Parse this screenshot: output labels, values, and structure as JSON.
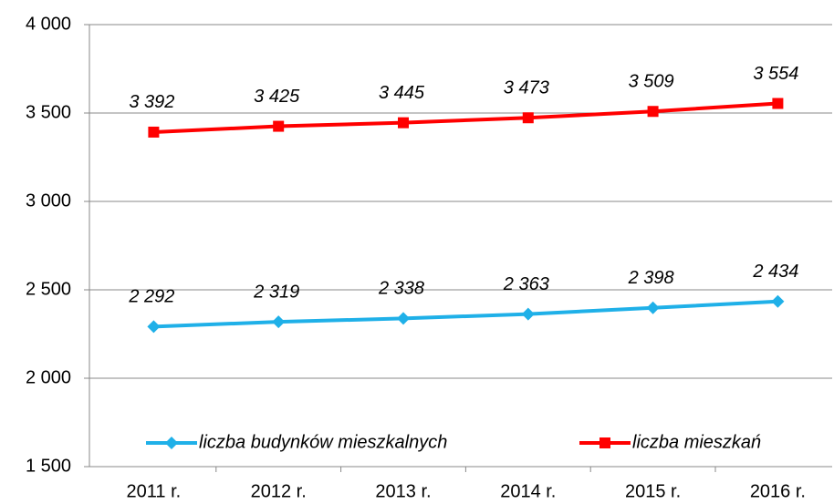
{
  "chart_data": {
    "type": "line",
    "categories": [
      "2011 r.",
      "2012 r.",
      "2013 r.",
      "2014 r.",
      "2015 r.",
      "2016 r."
    ],
    "series": [
      {
        "name": "liczba budynków mieszkalnych",
        "color": "#1fb0e8",
        "marker": "diamond",
        "values": [
          2292,
          2319,
          2338,
          2363,
          2398,
          2434
        ],
        "value_labels": [
          "2 292",
          "2 319",
          "2 338",
          "2 363",
          "2 398",
          "2 434"
        ]
      },
      {
        "name": "liczba mieszkań",
        "color": "#ff0000",
        "marker": "square",
        "values": [
          3392,
          3425,
          3445,
          3473,
          3509,
          3554
        ],
        "value_labels": [
          "3 392",
          "3 425",
          "3 445",
          "3 473",
          "3 509",
          "3 554"
        ]
      }
    ],
    "ylim": [
      1500,
      4000
    ],
    "yticks": [
      {
        "value": 1500,
        "label": "1 500"
      },
      {
        "value": 2000,
        "label": "2 000"
      },
      {
        "value": 2500,
        "label": "2 500"
      },
      {
        "value": 3000,
        "label": "3 000"
      },
      {
        "value": 3500,
        "label": "3 500"
      },
      {
        "value": 4000,
        "label": "4 000"
      }
    ],
    "grid": true,
    "legend": "bottom"
  }
}
